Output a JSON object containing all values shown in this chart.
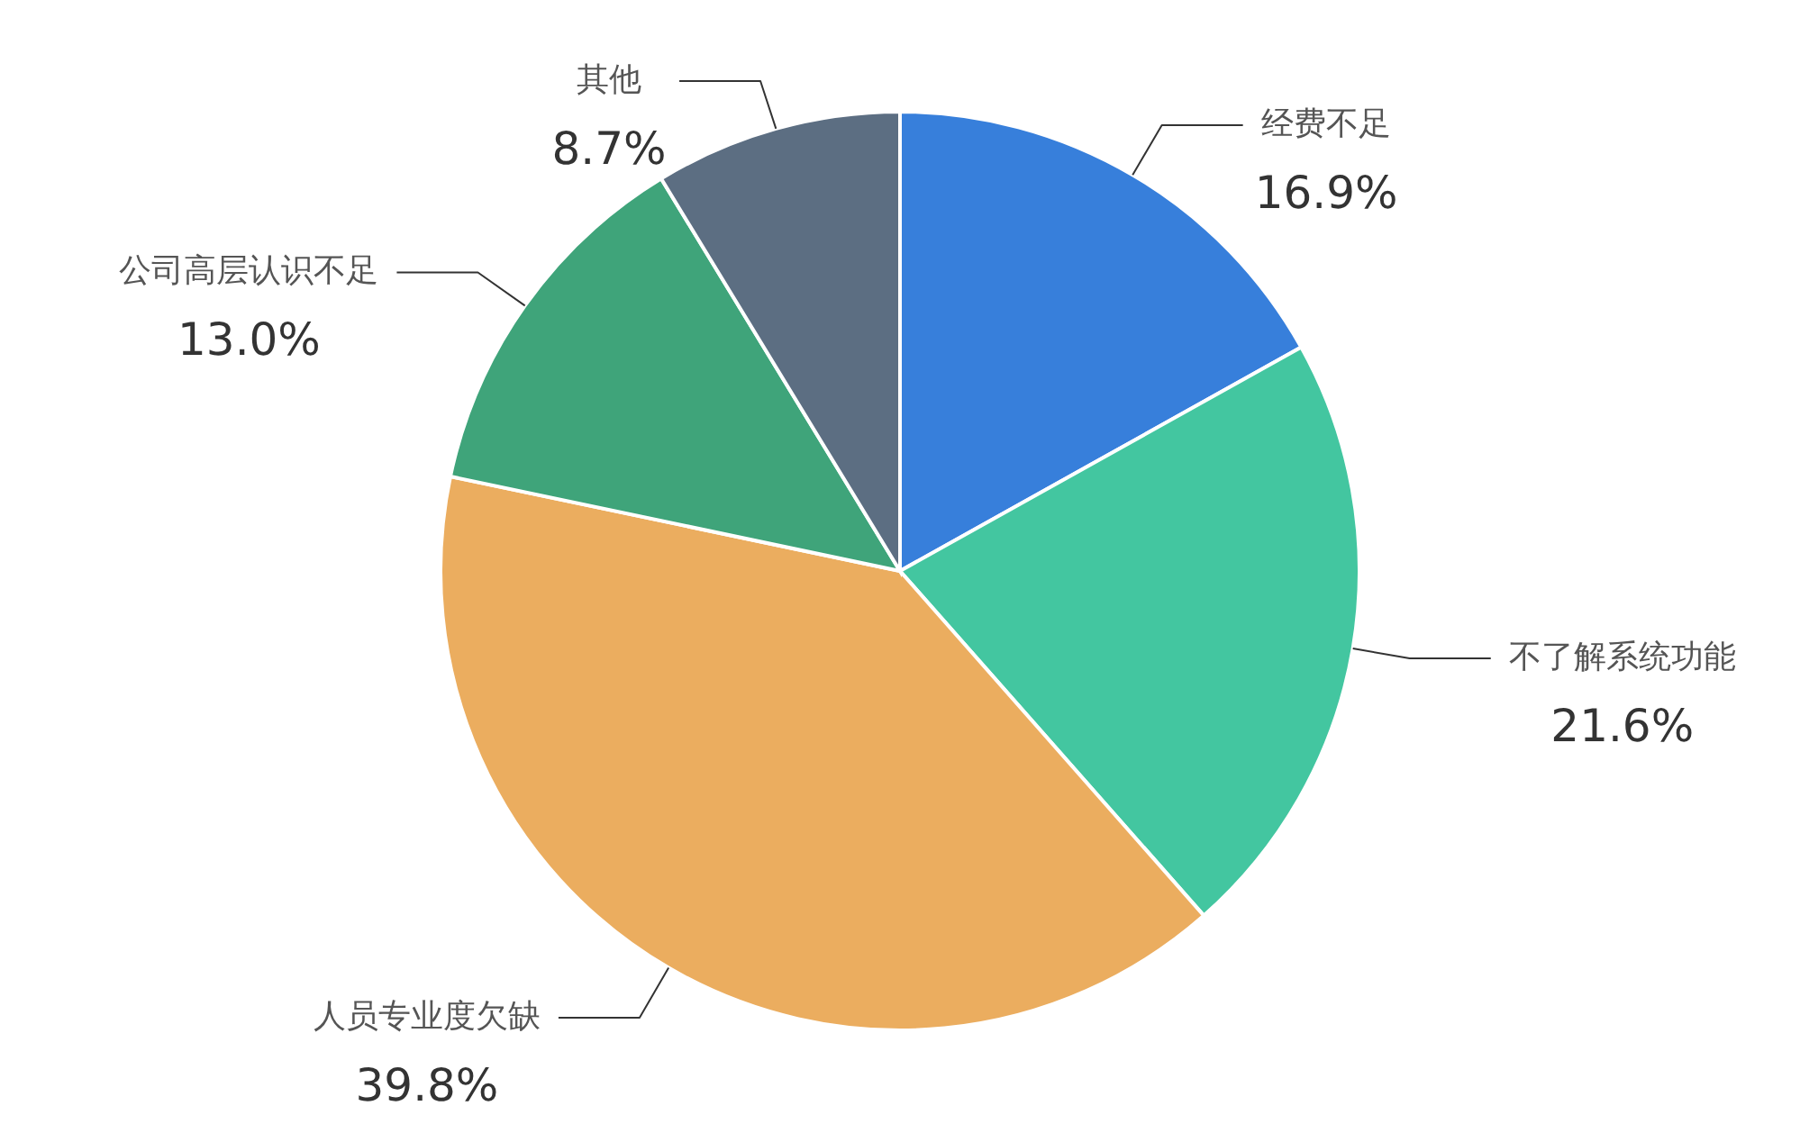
{
  "chart_data": {
    "type": "pie",
    "categories": [
      "经费不足",
      "不了解系统功能",
      "人员专业度欠缺",
      "公司高层认识不足",
      "其他"
    ],
    "values": [
      16.9,
      21.6,
      39.8,
      13.0,
      8.7
    ],
    "colors": [
      "#377fdb",
      "#43c6a0",
      "#ebad5f",
      "#3fa47a",
      "#5c6e82"
    ],
    "value_labels": [
      "16.9%",
      "21.6%",
      "39.8%",
      "13.0%",
      "8.7%"
    ]
  }
}
